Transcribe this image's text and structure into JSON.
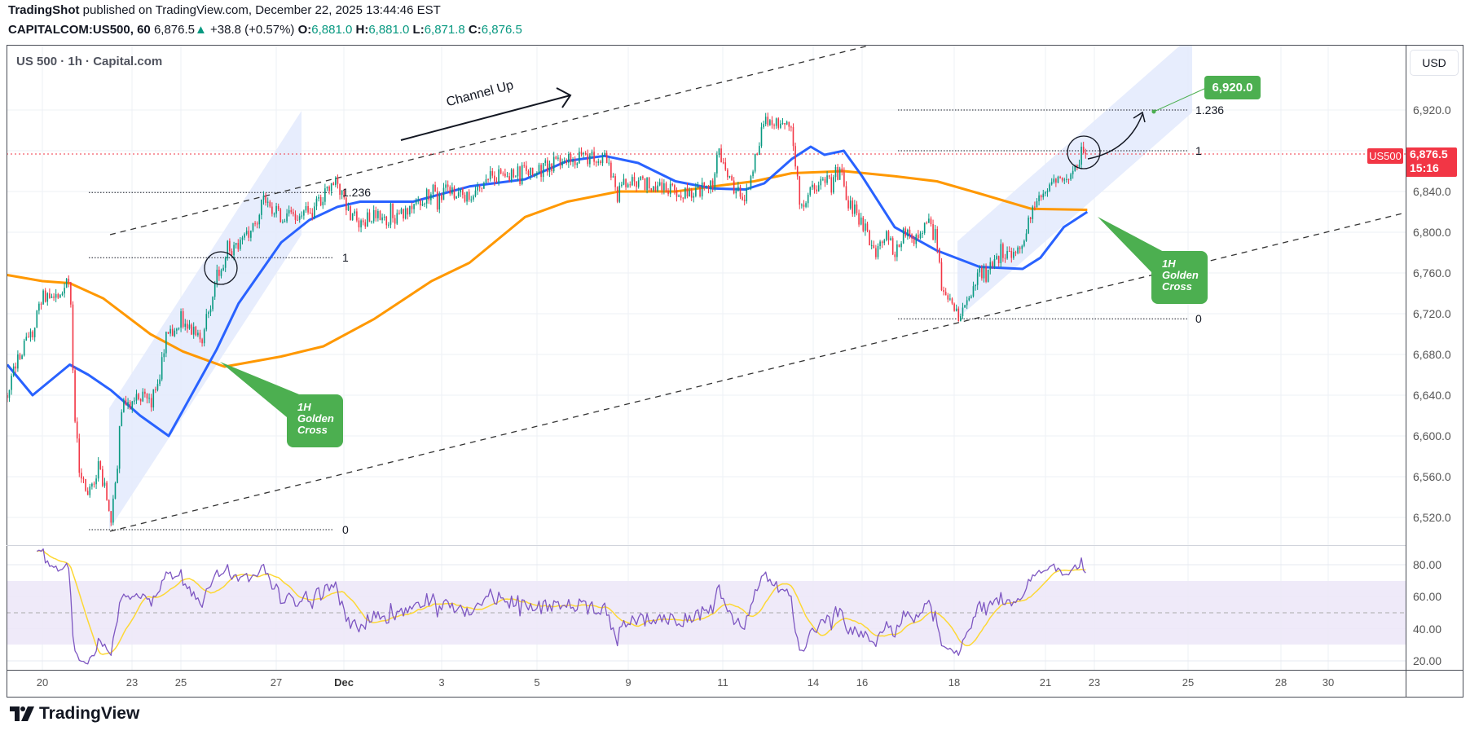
{
  "header": {
    "author": "TradingShot",
    "published": " published on TradingView.com, December 22, 2025 13:44:46 EST"
  },
  "symbol_bar": {
    "symbol": "CAPITALCOM:US500, 60",
    "last": "6,876.5",
    "change": "+38.8 (+0.57%)",
    "o_label": "O:",
    "o": "6,881.0",
    "h_label": "H:",
    "h": "6,881.0",
    "l_label": "L:",
    "l": "6,871.8",
    "c_label": "C:",
    "c": "6,876.5"
  },
  "legend": "US 500 · 1h · Capital.com",
  "currency": "USD",
  "colors": {
    "up": "#089981",
    "down": "#f23645",
    "ma_fast": "#2962ff",
    "ma_slow": "#ff9800",
    "rsi": "#7e57c2",
    "rsi_ma": "#fdd835",
    "callout": "#4caf50",
    "channel_fill": "#e3eafd",
    "last_price": "#f23645"
  },
  "chart_data": {
    "type": "candlestick",
    "price_axis": {
      "ticks": [
        6920,
        6840,
        6800,
        6760,
        6720,
        6680,
        6640,
        6600,
        6560,
        6520
      ],
      "tick_labels": [
        "6,920.0",
        "6,840.0",
        "6,800.0",
        "6,760.0",
        "6,720.0",
        "6,680.0",
        "6,640.0",
        "6,600.0",
        "6,560.0",
        "6,520.0"
      ],
      "ylim": [
        6493,
        6971
      ]
    },
    "time_axis": {
      "ticks": [
        "20",
        "23",
        "25",
        "27",
        "Dec",
        "3",
        "5",
        "9",
        "11",
        "14",
        "16",
        "18",
        "21",
        "23",
        "25",
        "28",
        "30"
      ]
    },
    "price_path": [
      [
        "2025-11-19T06:00",
        6640
      ],
      [
        "2025-11-19T12:00",
        6680
      ],
      [
        "2025-11-19T19:00",
        6700
      ],
      [
        "2025-11-20T00:00",
        6740
      ],
      [
        "2025-11-20T07:00",
        6730
      ],
      [
        "2025-11-20T15:00",
        6740
      ],
      [
        "2025-11-20T22:00",
        6760
      ],
      [
        "2025-11-21T02:00",
        6620
      ],
      [
        "2025-11-21T06:00",
        6560
      ],
      [
        "2025-11-21T13:00",
        6540
      ],
      [
        "2025-11-21T21:00",
        6570
      ],
      [
        "2025-11-22T01:00",
        6555
      ],
      [
        "2025-11-22T07:00",
        6512
      ],
      [
        "2025-11-22T12:00",
        6580
      ],
      [
        "2025-11-22T17:00",
        6640
      ],
      [
        "2025-11-22T23:00",
        6630
      ],
      [
        "2025-11-23T08:00",
        6640
      ],
      [
        "2025-11-23T18:00",
        6630
      ],
      [
        "2025-11-24T03:00",
        6660
      ],
      [
        "2025-11-24T12:00",
        6700
      ],
      [
        "2025-11-25T01:00",
        6710
      ],
      [
        "2025-11-25T10:00",
        6700
      ],
      [
        "2025-11-25T15:00",
        6730
      ],
      [
        "2025-11-25T18:00",
        6760
      ],
      [
        "2025-11-25T22:00",
        6770
      ],
      [
        "2025-11-26T05:00",
        6790
      ],
      [
        "2025-11-26T12:00",
        6800
      ],
      [
        "2025-11-26T17:00",
        6830
      ],
      [
        "2025-11-27T07:00",
        6815
      ],
      [
        "2025-11-28T23:00",
        6820
      ],
      [
        "2025-11-29T19:00",
        6835
      ],
      [
        "2025-11-30T15:00",
        6850
      ],
      [
        "2025-12-01T02:00",
        6820
      ],
      [
        "2025-12-01T08:00",
        6810
      ],
      [
        "2025-12-01T15:00",
        6815
      ],
      [
        "2025-12-02T00:00",
        6810
      ],
      [
        "2025-12-02T10:00",
        6825
      ],
      [
        "2025-12-02T19:00",
        6840
      ],
      [
        "2025-12-03T04:00",
        6840
      ],
      [
        "2025-12-03T14:00",
        6835
      ],
      [
        "2025-12-03T23:00",
        6855
      ],
      [
        "2025-12-04T08:00",
        6855
      ],
      [
        "2025-12-04T18:00",
        6860
      ],
      [
        "2025-12-05T07:00",
        6865
      ],
      [
        "2025-12-06T08:00",
        6870
      ],
      [
        "2025-12-06T23:00",
        6875
      ],
      [
        "2025-12-07T23:00",
        6870
      ],
      [
        "2025-12-08T14:00",
        6845
      ],
      [
        "2025-12-09T05:00",
        6850
      ],
      [
        "2025-12-09T14:00",
        6845
      ],
      [
        "2025-12-10T00:00",
        6840
      ],
      [
        "2025-12-10T09:00",
        6840
      ],
      [
        "2025-12-10T19:00",
        6845
      ],
      [
        "2025-12-10T21:00",
        6880
      ],
      [
        "2025-12-11T03:00",
        6860
      ],
      [
        "2025-12-11T10:00",
        6840
      ],
      [
        "2025-12-11T18:00",
        6835
      ],
      [
        "2025-12-12T01:00",
        6870
      ],
      [
        "2025-12-12T09:00",
        6910
      ],
      [
        "2025-12-12T20:00",
        6905
      ],
      [
        "2025-12-13T07:00",
        6900
      ],
      [
        "2025-12-13T14:00",
        6820
      ],
      [
        "2025-12-13T22:00",
        6840
      ],
      [
        "2025-12-14T11:00",
        6850
      ],
      [
        "2025-12-15T01:00",
        6860
      ],
      [
        "2025-12-15T06:00",
        6850
      ],
      [
        "2025-12-15T10:00",
        6830
      ],
      [
        "2025-12-16T00:00",
        6810
      ],
      [
        "2025-12-16T07:00",
        6780
      ],
      [
        "2025-12-16T12:00",
        6800
      ],
      [
        "2025-12-16T17:00",
        6780
      ],
      [
        "2025-12-16T22:00",
        6800
      ],
      [
        "2025-12-17T03:00",
        6795
      ],
      [
        "2025-12-17T10:00",
        6810
      ],
      [
        "2025-12-17T15:00",
        6790
      ],
      [
        "2025-12-17T18:00",
        6740
      ],
      [
        "2025-12-17T23:00",
        6725
      ],
      [
        "2025-12-18T05:00",
        6718
      ],
      [
        "2025-12-18T13:00",
        6740
      ],
      [
        "2025-12-18T20:00",
        6760
      ],
      [
        "2025-12-19T07:00",
        6770
      ],
      [
        "2025-12-19T18:00",
        6780
      ],
      [
        "2025-12-20T06:00",
        6785
      ],
      [
        "2025-12-20T13:00",
        6820
      ],
      [
        "2025-12-20T20:00",
        6840
      ],
      [
        "2025-12-21T09:00",
        6850
      ],
      [
        "2025-12-21T18:00",
        6855
      ],
      [
        "2025-12-22T03:00",
        6860
      ],
      [
        "2025-12-22T08:00",
        6870
      ],
      [
        "2025-12-22T12:00",
        6880
      ],
      [
        "2025-12-22T17:00",
        6876.5
      ]
    ],
    "ma_fast": [
      [
        "2025-11-19T06:00",
        6670
      ],
      [
        "2025-11-19T19:00",
        6640
      ],
      [
        "2025-11-20T22:00",
        6670
      ],
      [
        "2025-11-21T13:00",
        6660
      ],
      [
        "2025-11-22T07:00",
        6645
      ],
      [
        "2025-11-23T08:00",
        6620
      ],
      [
        "2025-11-24T12:00",
        6600
      ],
      [
        "2025-11-25T01:00",
        6625
      ],
      [
        "2025-11-25T18:00",
        6685
      ],
      [
        "2025-11-26T05:00",
        6730
      ],
      [
        "2025-11-27T07:00",
        6790
      ],
      [
        "2025-11-28T23:00",
        6812
      ],
      [
        "2025-11-30T15:00",
        6825
      ],
      [
        "2025-12-01T08:00",
        6830
      ],
      [
        "2025-12-02T10:00",
        6830
      ],
      [
        "2025-12-03T14:00",
        6845
      ],
      [
        "2025-12-04T18:00",
        6852
      ],
      [
        "2025-12-06T08:00",
        6870
      ],
      [
        "2025-12-07T23:00",
        6875
      ],
      [
        "2025-12-09T05:00",
        6868
      ],
      [
        "2025-12-10T00:00",
        6850
      ],
      [
        "2025-12-10T19:00",
        6843
      ],
      [
        "2025-12-11T18:00",
        6842
      ],
      [
        "2025-12-12T09:00",
        6848
      ],
      [
        "2025-12-13T07:00",
        6872
      ],
      [
        "2025-12-13T22:00",
        6884
      ],
      [
        "2025-12-14T11:00",
        6876
      ],
      [
        "2025-12-15T06:00",
        6880
      ],
      [
        "2025-12-16T00:00",
        6855
      ],
      [
        "2025-12-16T17:00",
        6805
      ],
      [
        "2025-12-17T15:00",
        6782
      ],
      [
        "2025-12-18T20:00",
        6766
      ],
      [
        "2025-12-20T06:00",
        6764
      ],
      [
        "2025-12-20T20:00",
        6775
      ],
      [
        "2025-12-21T18:00",
        6805
      ],
      [
        "2025-12-22T17:00",
        6820
      ]
    ],
    "ma_slow": [
      [
        "2025-11-19T06:00",
        6758
      ],
      [
        "2025-11-20T00:00",
        6752
      ],
      [
        "2025-11-20T22:00",
        6750
      ],
      [
        "2025-11-22T01:00",
        6735
      ],
      [
        "2025-11-23T18:00",
        6700
      ],
      [
        "2025-11-25T01:00",
        6683
      ],
      [
        "2025-11-25T22:00",
        6668
      ],
      [
        "2025-11-27T07:00",
        6678
      ],
      [
        "2025-11-29T19:00",
        6688
      ],
      [
        "2025-12-01T15:00",
        6715
      ],
      [
        "2025-12-02T19:00",
        6752
      ],
      [
        "2025-12-03T14:00",
        6770
      ],
      [
        "2025-12-04T18:00",
        6815
      ],
      [
        "2025-12-06T08:00",
        6830
      ],
      [
        "2025-12-08T14:00",
        6840
      ],
      [
        "2025-12-10T00:00",
        6840
      ],
      [
        "2025-12-10T19:00",
        6845
      ],
      [
        "2025-12-12T01:00",
        6850
      ],
      [
        "2025-12-13T07:00",
        6858
      ],
      [
        "2025-12-15T06:00",
        6860
      ],
      [
        "2025-12-16T17:00",
        6855
      ],
      [
        "2025-12-17T15:00",
        6850
      ],
      [
        "2025-12-18T20:00",
        6838
      ],
      [
        "2025-12-20T13:00",
        6823
      ],
      [
        "2025-12-22T17:00",
        6822
      ]
    ],
    "rsi": {
      "ticks": [
        80,
        60,
        40,
        20
      ],
      "tick_labels": [
        "80.00",
        "60.00",
        "40.00",
        "20.00"
      ],
      "band": [
        30,
        70
      ],
      "mid": 50
    },
    "annotations": {
      "channel_label": "Channel Up",
      "callout_lines": [
        "1H",
        "Golden",
        "Cross"
      ],
      "fib_left": [
        {
          "label": "1.236",
          "price": 6839
        },
        {
          "label": "1",
          "price": 6775
        },
        {
          "label": "0",
          "price": 6508
        }
      ],
      "fib_right": [
        {
          "label": "1.236",
          "price": 6920
        },
        {
          "label": "1",
          "price": 6880
        },
        {
          "label": "0",
          "price": 6715
        }
      ],
      "target": "6,920.0",
      "last_price_symbol": "US500",
      "last_price": "6,876.5",
      "bar_countdown": "15:16"
    }
  },
  "footer": {
    "logo": "TradingView"
  }
}
